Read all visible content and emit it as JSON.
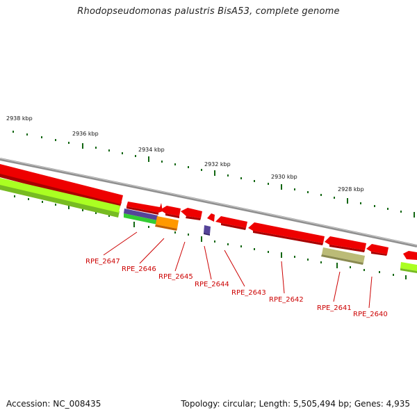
{
  "title": "Rhodopseudomonas palustris BisA53, complete genome",
  "footer": {
    "accession": "Accession: NC_008435",
    "topology": "Topology: circular; Length: 5,505,494 bp; Genes: 4,935"
  },
  "colors": {
    "backbone": "#8f8f8f",
    "gene_red": "#ee0000",
    "gene_lime": "#aaff22",
    "gene_green": "#33cc33",
    "gene_purple": "#554499",
    "gene_orange": "#ff9900",
    "gene_khaki": "#bbbb77",
    "tick": "#116611",
    "label": "#cc0000"
  },
  "ticks": [
    "2938 kbp",
    "2936 kbp",
    "2934 kbp",
    "2932 kbp",
    "2930 kbp",
    "2928 kbp"
  ],
  "gene_labels": [
    "RPE_2647",
    "RPE_2646",
    "RPE_2645",
    "RPE_2644",
    "RPE_2643",
    "RPE_2642",
    "RPE_2641",
    "RPE_2640"
  ]
}
